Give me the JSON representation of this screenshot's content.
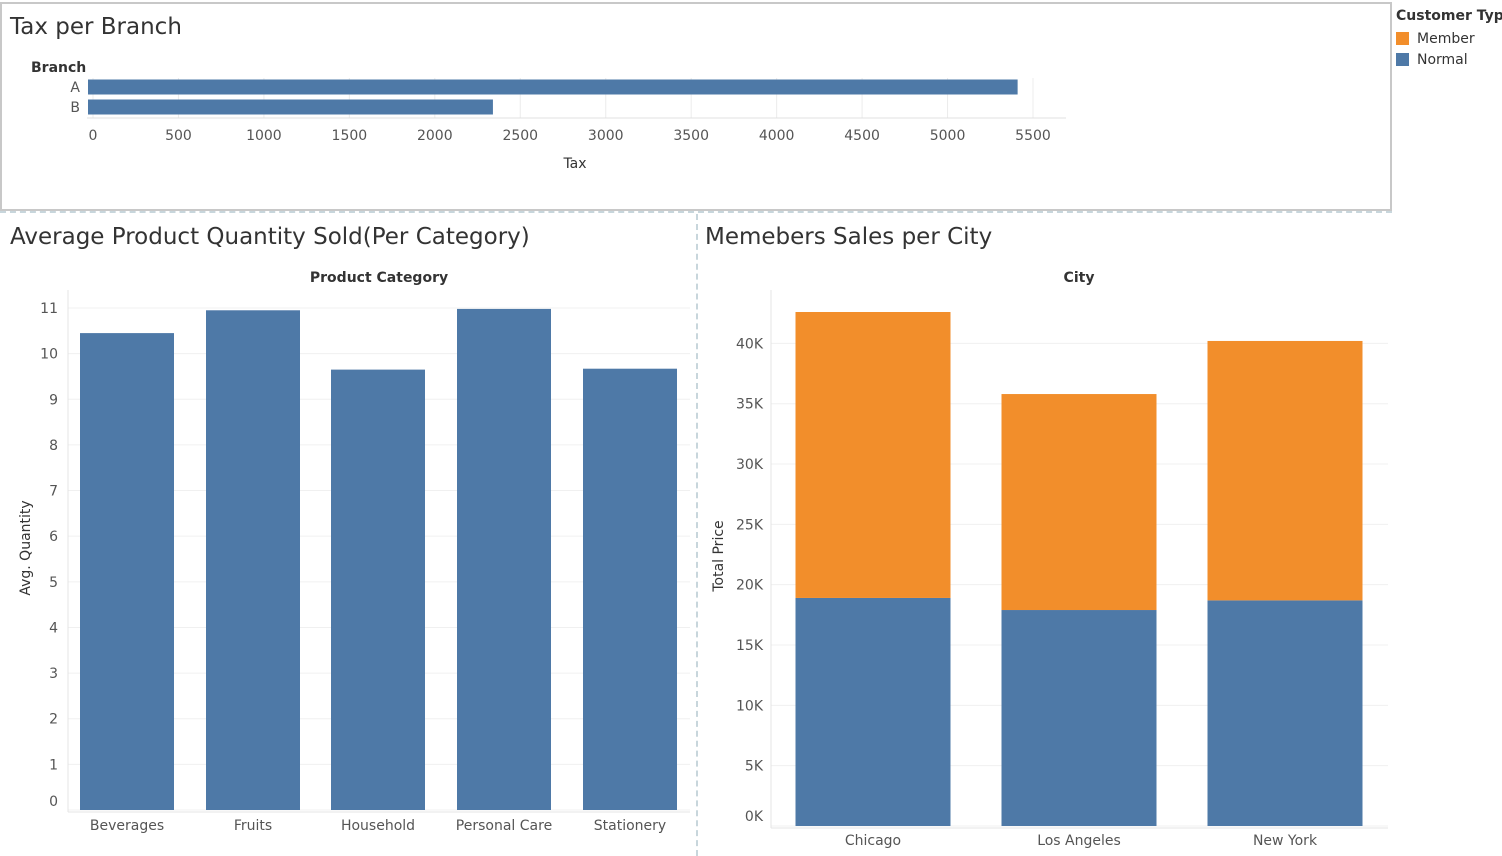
{
  "legend": {
    "title": "Customer Type",
    "items": [
      {
        "label": "Member",
        "color": "#f28e2b"
      },
      {
        "label": "Normal",
        "color": "#4e79a7"
      }
    ]
  },
  "chart_data": [
    {
      "type": "bar",
      "orientation": "horizontal",
      "title": "Tax per Branch",
      "row_header": "Branch",
      "categories": [
        "A",
        "B"
      ],
      "values": [
        5410,
        2340
      ],
      "xlabel": "Tax",
      "xlim": [
        0,
        5500
      ],
      "xticks": [
        0,
        500,
        1000,
        1500,
        2000,
        2500,
        3000,
        3500,
        4000,
        4500,
        5000,
        5500
      ],
      "color": "#4e79a7",
      "grid": true
    },
    {
      "type": "bar",
      "title": "Average Product Quantity Sold(Per Category)",
      "column_header": "Product Category",
      "categories": [
        "Beverages",
        "Fruits",
        "Household",
        "Personal Care",
        "Stationery"
      ],
      "values": [
        10.45,
        10.95,
        9.65,
        10.98,
        9.67
      ],
      "ylabel": "Avg. Quantity",
      "ylim": [
        0,
        11
      ],
      "yticks": [
        0,
        1,
        2,
        3,
        4,
        5,
        6,
        7,
        8,
        9,
        10,
        11
      ],
      "color": "#4e79a7",
      "grid": true
    },
    {
      "type": "bar",
      "stacked": true,
      "title": "Memebers Sales per City",
      "column_header": "City",
      "categories": [
        "Chicago",
        "Los Angeles",
        "New York"
      ],
      "series": [
        {
          "name": "Normal",
          "color": "#4e79a7",
          "values": [
            18900,
            17900,
            18700
          ]
        },
        {
          "name": "Member",
          "color": "#f28e2b",
          "values": [
            23700,
            17900,
            21500
          ]
        }
      ],
      "ylabel": "Total Price",
      "ylim": [
        0,
        42600
      ],
      "yticks": [
        0,
        5000,
        10000,
        15000,
        20000,
        25000,
        30000,
        35000,
        40000
      ],
      "ytick_labels": [
        "0K",
        "5K",
        "10K",
        "15K",
        "20K",
        "25K",
        "30K",
        "35K",
        "40K"
      ],
      "legend": "right",
      "grid": true
    }
  ]
}
